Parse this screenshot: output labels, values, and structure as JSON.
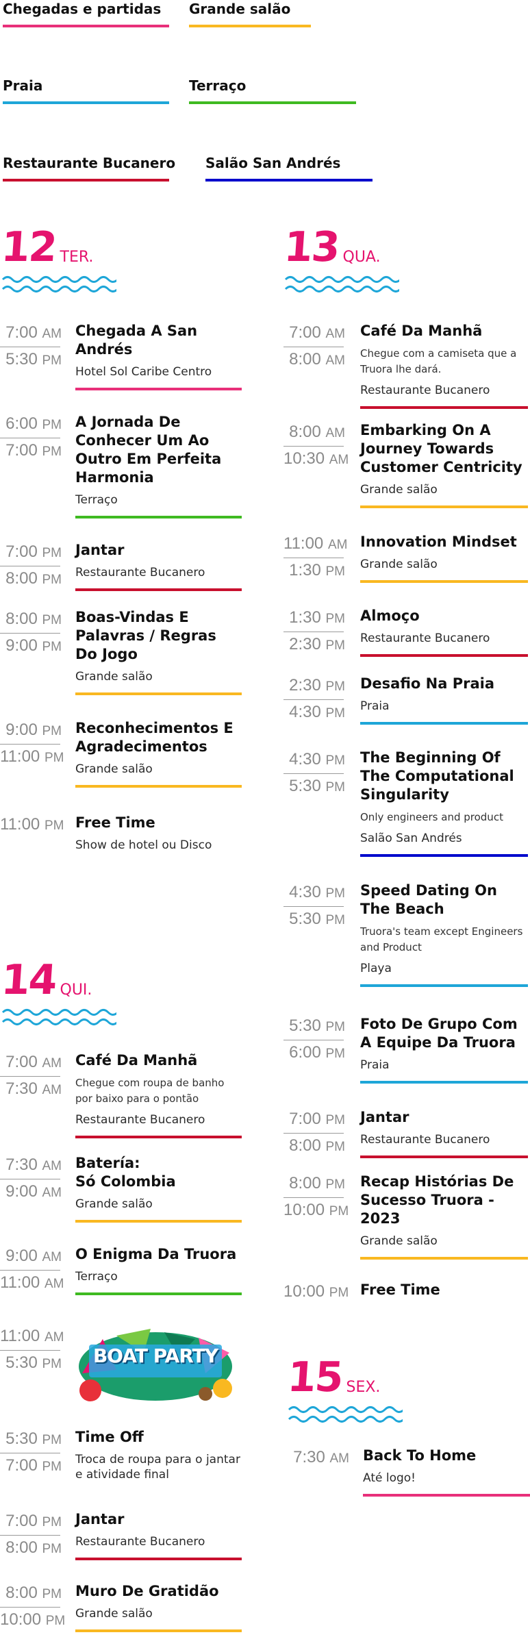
{
  "legend": [
    {
      "label": "Chegadas e partidas",
      "color": "#e8307a"
    },
    {
      "label": "Grande salão",
      "color": "#f9b821"
    },
    {
      "label": "Praia",
      "color": "#1ea6d8"
    },
    {
      "label": "Terraço",
      "color": "#3fba21"
    },
    {
      "label": "Restaurante Bucanero",
      "color": "#c8102e"
    },
    {
      "label": "Salão San Andrés",
      "color": "#0008cc"
    }
  ],
  "days": [
    {
      "num": "12",
      "name": "TER."
    },
    {
      "num": "13",
      "name": "QUA."
    },
    {
      "num": "14",
      "name": "QUI."
    },
    {
      "num": "15",
      "name": "SEX."
    }
  ],
  "events": [
    {
      "start": "7:00",
      "start_ap": "AM",
      "end": "5:30",
      "end_ap": "PM",
      "title": "Chegada A San Andrés",
      "desc": "",
      "loc": "Hotel Sol Caribe Centro",
      "color": "#e8307a"
    },
    {
      "start": "6:00",
      "start_ap": "PM",
      "end": "7:00",
      "end_ap": "PM",
      "title": "A Jornada De Conhecer Um Ao Outro Em Perfeita Harmonia",
      "desc": "",
      "loc": "Terraço",
      "color": "#3fba21"
    },
    {
      "start": "7:00",
      "start_ap": "PM",
      "end": "8:00",
      "end_ap": "PM",
      "title": "Jantar",
      "desc": "",
      "loc": "Restaurante Bucanero",
      "color": "#c8102e"
    },
    {
      "start": "8:00",
      "start_ap": "PM",
      "end": "9:00",
      "end_ap": "PM",
      "title": "Boas-Vindas E Palavras / Regras Do Jogo",
      "desc": "",
      "loc": "Grande salão",
      "color": "#f9b821"
    },
    {
      "start": "9:00",
      "start_ap": "PM",
      "end": "11:00",
      "end_ap": "PM",
      "title": "Reconhecimentos E Agradecimentos",
      "desc": "",
      "loc": "Grande salão",
      "color": "#f9b821"
    },
    {
      "start": "11:00",
      "start_ap": "PM",
      "end": "",
      "end_ap": "",
      "title": "Free Time",
      "desc": "",
      "loc": "Show de hotel ou Disco",
      "color": ""
    },
    {
      "start": "7:00",
      "start_ap": "AM",
      "end": "8:00",
      "end_ap": "AM",
      "title": "Café Da Manhã",
      "desc": "Chegue com a camiseta que a Truora lhe dará.",
      "loc": "Restaurante Bucanero",
      "color": "#c8102e"
    },
    {
      "start": "8:00",
      "start_ap": "AM",
      "end": "10:30",
      "end_ap": "AM",
      "title": "Embarking On A Journey Towards Customer Centricity",
      "desc": "",
      "loc": "Grande salão",
      "color": "#f9b821"
    },
    {
      "start": "11:00",
      "start_ap": "AM",
      "end": "1:30",
      "end_ap": "PM",
      "title": "Innovation Mindset",
      "desc": "",
      "loc": "Grande salão",
      "color": "#f9b821"
    },
    {
      "start": "1:30",
      "start_ap": "PM",
      "end": "2:30",
      "end_ap": "PM",
      "title": "Almoço",
      "desc": "",
      "loc": "Restaurante Bucanero",
      "color": "#c8102e"
    },
    {
      "start": "2:30",
      "start_ap": "PM",
      "end": "4:30",
      "end_ap": "PM",
      "title": "Desafio Na Praia",
      "desc": "",
      "loc": "Praia",
      "color": "#1ea6d8"
    },
    {
      "start": "4:30",
      "start_ap": "PM",
      "end": "5:30",
      "end_ap": "PM",
      "title": "The Beginning Of The Computational Singularity",
      "desc": "Only engineers and product",
      "loc": "Salão San Andrés",
      "color": "#0008cc"
    },
    {
      "start": "4:30",
      "start_ap": "PM",
      "end": "5:30",
      "end_ap": "PM",
      "title": "Speed Dating On The Beach",
      "desc": "Truora's team except Engineers and Product",
      "loc": "Playa",
      "color": "#1ea6d8"
    },
    {
      "start": "5:30",
      "start_ap": "PM",
      "end": "6:00",
      "end_ap": "PM",
      "title": "Foto De Grupo Com A Equipe Da Truora",
      "desc": "",
      "loc": "Praia",
      "color": "#1ea6d8"
    },
    {
      "start": "7:00",
      "start_ap": "PM",
      "end": "8:00",
      "end_ap": "PM",
      "title": "Jantar",
      "desc": "",
      "loc": "Restaurante Bucanero",
      "color": "#c8102e"
    },
    {
      "start": "8:00",
      "start_ap": "PM",
      "end": "10:00",
      "end_ap": "PM",
      "title": "Recap Histórias De Sucesso Truora - 2023",
      "desc": "",
      "loc": "Grande salão",
      "color": "#f9b821"
    },
    {
      "start": "10:00",
      "start_ap": "PM",
      "end": "",
      "end_ap": "",
      "title": "Free Time",
      "desc": "",
      "loc": "",
      "color": ""
    },
    {
      "start": "7:00",
      "start_ap": "AM",
      "end": "7:30",
      "end_ap": "AM",
      "title": "Café Da Manhã",
      "desc": "Chegue com roupa de banho por baixo para o pontão",
      "loc": "Restaurante Bucanero",
      "color": "#c8102e"
    },
    {
      "start": "7:30",
      "start_ap": "AM",
      "end": "9:00",
      "end_ap": "AM",
      "title": "Batería:\nSó Colombia",
      "desc": "",
      "loc": "Grande salão",
      "color": "#f9b821"
    },
    {
      "start": "9:00",
      "start_ap": "AM",
      "end": "11:00",
      "end_ap": "AM",
      "title": "O Enigma Da Truora",
      "desc": "",
      "loc": "Terraço",
      "color": "#3fba21"
    },
    {
      "start": "11:00",
      "start_ap": "AM",
      "end": "5:30",
      "end_ap": "PM",
      "title": "",
      "desc": "",
      "loc": "",
      "color": "",
      "image_text": "BOAT PARTY"
    },
    {
      "start": "5:30",
      "start_ap": "PM",
      "end": "7:00",
      "end_ap": "PM",
      "title": "Time Off",
      "desc": "",
      "loc": "Troca de roupa para o jantar e atividade final",
      "color": ""
    },
    {
      "start": "7:00",
      "start_ap": "PM",
      "end": "8:00",
      "end_ap": "PM",
      "title": "Jantar",
      "desc": "",
      "loc": "Restaurante Bucanero",
      "color": "#c8102e"
    },
    {
      "start": "8:00",
      "start_ap": "PM",
      "end": "10:00",
      "end_ap": "PM",
      "title": "Muro De Gratidão",
      "desc": "",
      "loc": "Grande salão",
      "color": "#f9b821"
    },
    {
      "start": "7:30",
      "start_ap": "AM",
      "end": "",
      "end_ap": "",
      "title": "Back To Home",
      "desc": "",
      "loc": "Até logo!",
      "color": "#e8307a"
    }
  ]
}
